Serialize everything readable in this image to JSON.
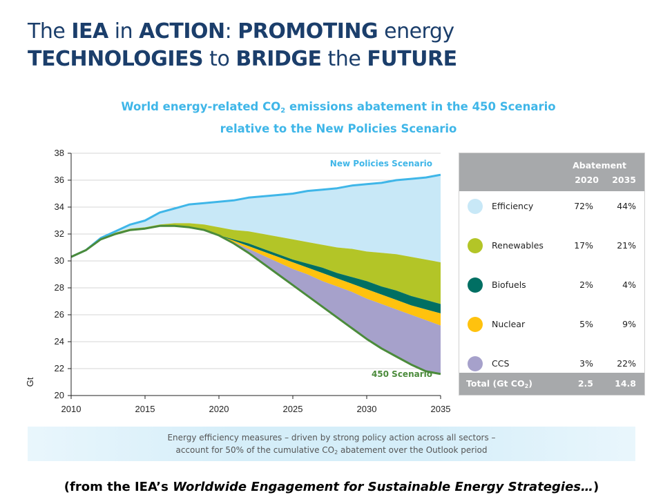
{
  "slide": {
    "title_parts": [
      "The ",
      "IEA",
      " in ",
      "ACTION",
      ": ",
      "PROMOTING",
      " energy"
    ],
    "title_parts_line2": [
      "TECHNOLOGIES",
      " to ",
      "BRIDGE",
      " the ",
      "FUTURE"
    ]
  },
  "chart_title": {
    "line1_before": "World energy-related CO",
    "line1_sub": "2",
    "line1_after": " emissions abatement in the 450 Scenario",
    "line2": "relative to the New Policies Scenario"
  },
  "chart_data": {
    "type": "area",
    "ylabel": "Gt",
    "xlabel": "",
    "xlim": [
      2010,
      2035
    ],
    "ylim": [
      20,
      38
    ],
    "x_ticks": [
      2010,
      2015,
      2020,
      2025,
      2030,
      2035
    ],
    "y_ticks": [
      20,
      22,
      24,
      26,
      28,
      30,
      32,
      34,
      36,
      38
    ],
    "x": [
      2010,
      2011,
      2012,
      2013,
      2014,
      2015,
      2016,
      2017,
      2018,
      2019,
      2020,
      2021,
      2022,
      2023,
      2024,
      2025,
      2026,
      2027,
      2028,
      2029,
      2030,
      2031,
      2032,
      2033,
      2034,
      2035
    ],
    "lines": {
      "new_policies": [
        30.3,
        30.8,
        31.7,
        32.2,
        32.7,
        33.0,
        33.6,
        33.9,
        34.2,
        34.3,
        34.4,
        34.5,
        34.7,
        34.8,
        34.9,
        35.0,
        35.2,
        35.3,
        35.4,
        35.6,
        35.7,
        35.8,
        36.0,
        36.1,
        36.2,
        36.4
      ],
      "scenario_450": [
        30.3,
        30.8,
        31.6,
        32.0,
        32.3,
        32.4,
        32.6,
        32.6,
        32.5,
        32.3,
        31.9,
        31.3,
        30.6,
        29.8,
        29.0,
        28.2,
        27.4,
        26.6,
        25.8,
        25.0,
        24.2,
        23.5,
        22.9,
        22.3,
        21.8,
        21.6
      ]
    },
    "boundaries": {
      "efficiency_lower": [
        30.3,
        30.8,
        31.7,
        32.1,
        32.4,
        32.5,
        32.7,
        32.8,
        32.8,
        32.7,
        32.5,
        32.3,
        32.2,
        32.0,
        31.8,
        31.6,
        31.4,
        31.2,
        31.0,
        30.9,
        30.7,
        30.6,
        30.5,
        30.3,
        30.1,
        29.9
      ],
      "renewables_lower": [
        30.3,
        30.8,
        31.6,
        32.0,
        32.3,
        32.4,
        32.6,
        32.6,
        32.5,
        32.3,
        31.9,
        31.6,
        31.3,
        30.9,
        30.5,
        30.1,
        29.8,
        29.5,
        29.1,
        28.8,
        28.5,
        28.1,
        27.8,
        27.4,
        27.1,
        26.8
      ],
      "biofuels_lower": [
        30.3,
        30.8,
        31.6,
        32.0,
        32.3,
        32.4,
        32.6,
        32.6,
        32.5,
        32.3,
        31.9,
        31.5,
        31.1,
        30.7,
        30.3,
        29.9,
        29.5,
        29.1,
        28.7,
        28.3,
        27.9,
        27.5,
        27.1,
        26.7,
        26.4,
        26.1
      ],
      "nuclear_lower": [
        30.3,
        30.8,
        31.6,
        32.0,
        32.3,
        32.4,
        32.6,
        32.6,
        32.5,
        32.3,
        31.9,
        31.4,
        30.9,
        30.4,
        29.9,
        29.4,
        29.0,
        28.5,
        28.1,
        27.7,
        27.2,
        26.8,
        26.4,
        26.0,
        25.6,
        25.2
      ]
    },
    "series": [
      {
        "name": "Efficiency",
        "color": "#c8e8f7",
        "abatement_2020": "72%",
        "abatement_2035": "44%"
      },
      {
        "name": "Renewables",
        "color": "#b3c527",
        "abatement_2020": "17%",
        "abatement_2035": "21%"
      },
      {
        "name": "Biofuels",
        "color": "#006f63",
        "abatement_2020": "2%",
        "abatement_2035": "4%"
      },
      {
        "name": "Nuclear",
        "color": "#ffc20e",
        "abatement_2020": "5%",
        "abatement_2035": "9%"
      },
      {
        "name": "CCS",
        "color": "#a6a1cb",
        "abatement_2020": "3%",
        "abatement_2035": "22%"
      }
    ],
    "annotations": [
      "New Policies Scenario",
      "450 Scenario"
    ],
    "line_colors": {
      "new_policies": "#3fb6e8",
      "scenario_450": "#4b8b3b"
    }
  },
  "legend_table": {
    "header": "Abatement",
    "col_2020": "2020",
    "col_2035": "2035",
    "total_label_before": "Total (Gt CO",
    "total_label_sub": "2",
    "total_label_after": ")",
    "total_2020": "2.5",
    "total_2035": "14.8"
  },
  "note": {
    "line1": "Energy efficiency measures – driven by strong policy action across all sectors –",
    "line2_before": "account for 50% of the cumulative CO",
    "line2_sub": "2",
    "line2_after": " abatement over the Outlook period"
  },
  "footer": {
    "before": "(from the IEA’s ",
    "italic": "Worldwide Engagement for Sustainable Energy Strategies…",
    "after": ")"
  }
}
